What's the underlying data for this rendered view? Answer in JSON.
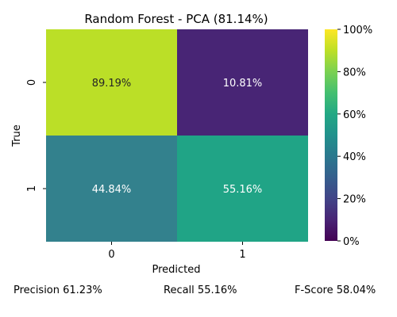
{
  "chart_data": {
    "type": "heatmap",
    "title": "Random Forest - PCA (81.14%)",
    "xlabel": "Predicted",
    "ylabel": "True",
    "x_categories": [
      "0",
      "1"
    ],
    "y_categories": [
      "0",
      "1"
    ],
    "values": [
      [
        89.19,
        10.81
      ],
      [
        44.84,
        55.16
      ]
    ],
    "cell_labels": [
      [
        "89.19%",
        "10.81%"
      ],
      [
        "44.84%",
        "55.16%"
      ]
    ],
    "colormap": "viridis",
    "colorbar": {
      "range": [
        0,
        100
      ],
      "ticks": [
        "0%",
        "20%",
        "40%",
        "60%",
        "80%",
        "100%"
      ]
    },
    "cell_colors": [
      [
        "#bbdf27",
        "#482575"
      ],
      [
        "#33818d",
        "#20a486"
      ]
    ]
  },
  "metrics": {
    "precision": "Precision 61.23%",
    "recall": "Recall 55.16%",
    "fscore": "F-Score 58.04%"
  }
}
